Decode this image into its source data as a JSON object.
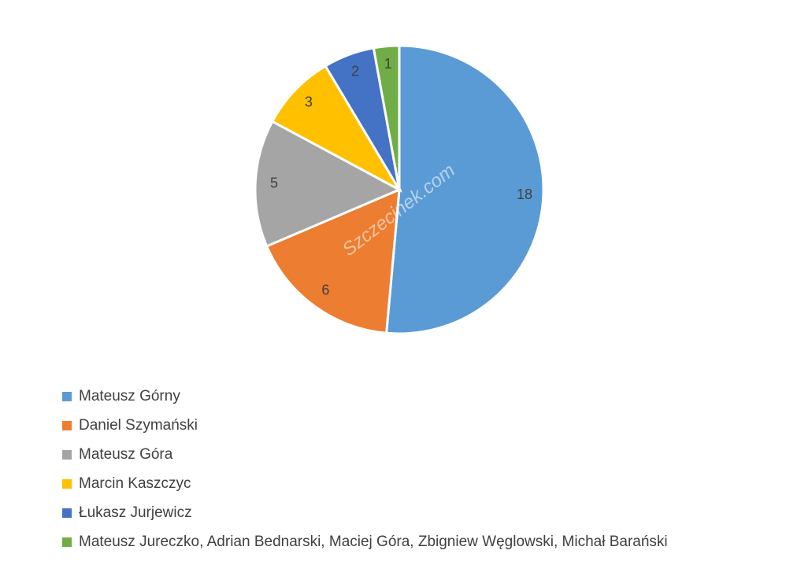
{
  "chart_data": {
    "type": "pie",
    "categories": [
      "Mateusz Górny",
      "Daniel Szymański",
      "Mateusz Góra",
      "Marcin Kaszczyc",
      "Łukasz Jurjewicz",
      "Mateusz Jureczko, Adrian Bednarski, Maciej Góra, Zbigniew Węglowski, Michał Barański"
    ],
    "values": [
      18,
      6,
      5,
      3,
      2,
      1
    ],
    "colors": [
      "#5b9bd5",
      "#ed7d31",
      "#a5a5a5",
      "#ffc000",
      "#4472c4",
      "#70ad47"
    ],
    "watermark": "Szczecinek.com",
    "legend": "bottom-left"
  }
}
